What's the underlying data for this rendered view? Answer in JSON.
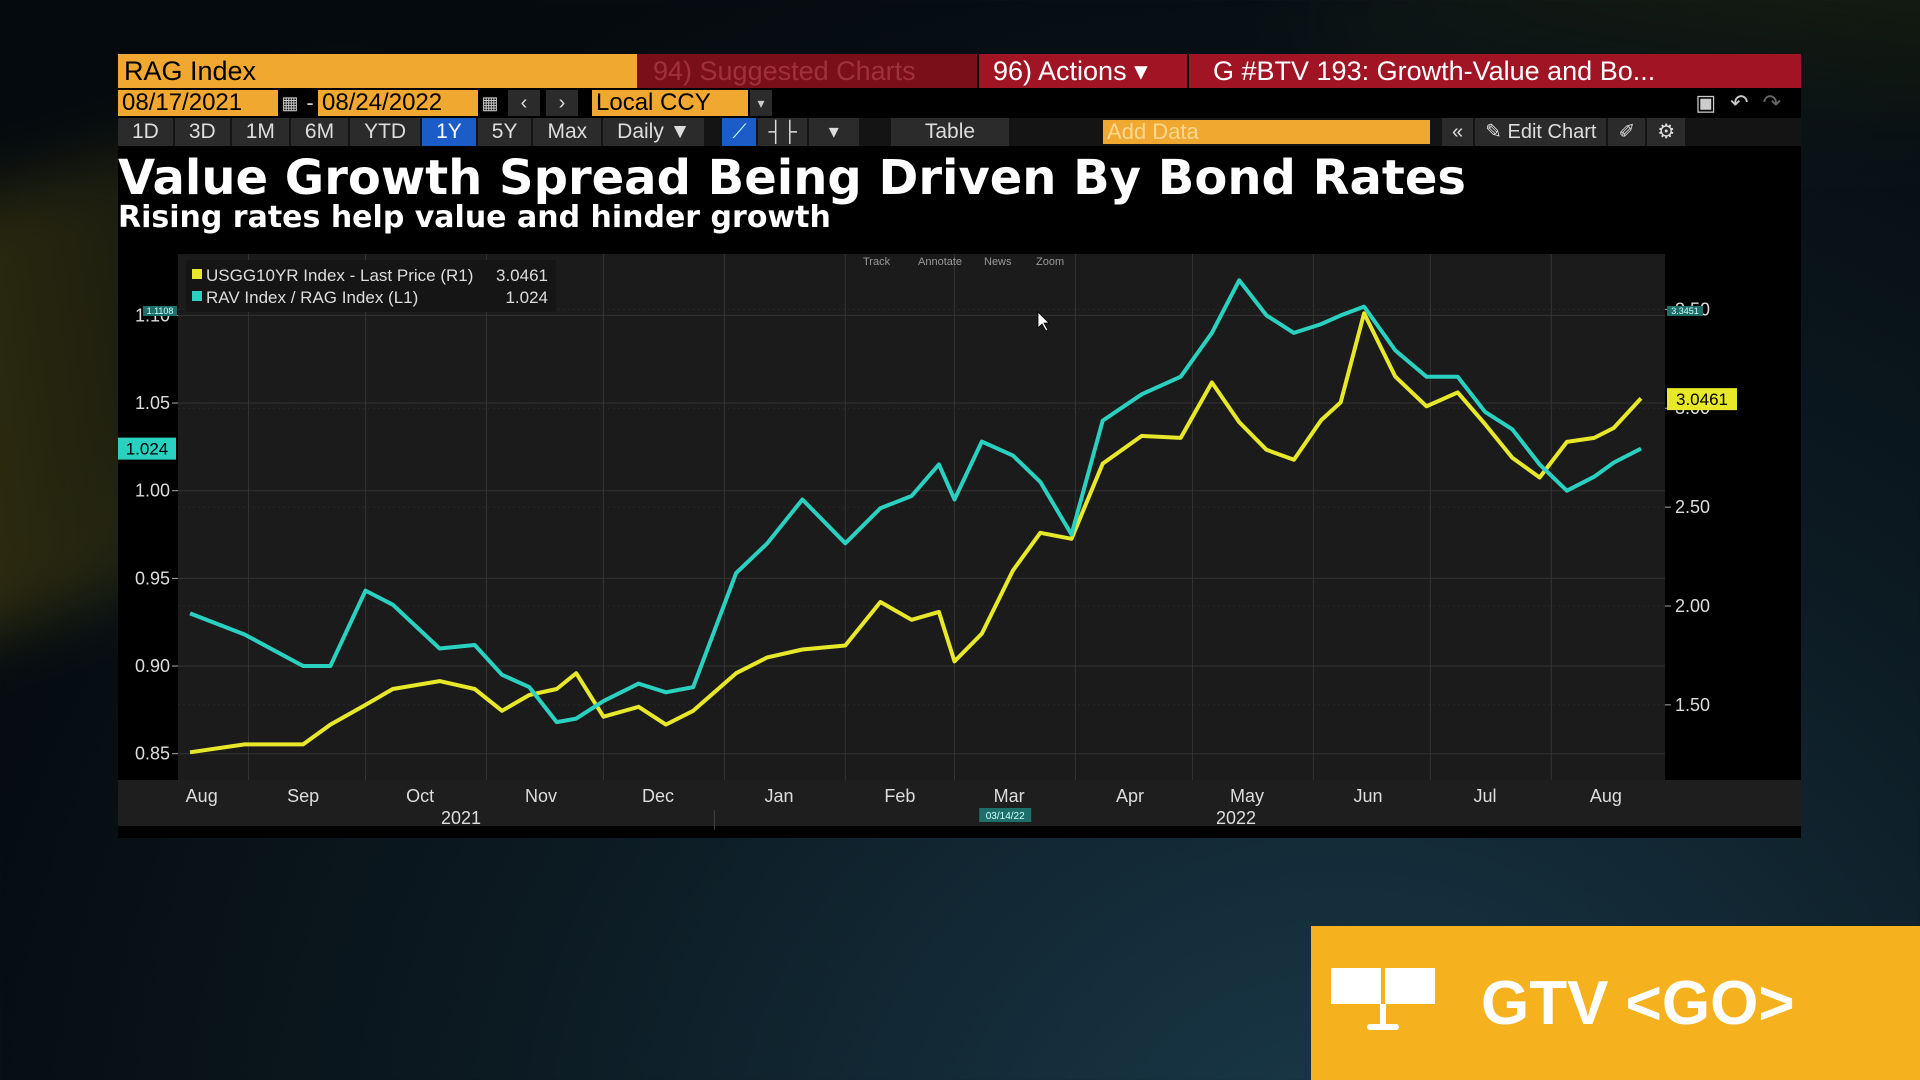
{
  "toolbar": {
    "security": "RAG Index",
    "suggested": "94) Suggested Charts",
    "actions": "96) Actions ▾",
    "chart_title": "G #BTV 193: Growth-Value and Bo...",
    "start_date": "08/17/2021",
    "end_date": "08/24/2022",
    "currency": "Local CCY",
    "timeframes": [
      "1D",
      "3D",
      "1M",
      "6M",
      "YTD",
      "1Y",
      "5Y",
      "Max"
    ],
    "active_timeframe": "1Y",
    "frequency": "Daily ▼",
    "table_label": "Table",
    "add_data_placeholder": "Add Data",
    "edit_chart_label": "Edit Chart"
  },
  "banner": {
    "text": "GTV <GO>"
  },
  "colors": {
    "series1": "#e8e82a",
    "series2": "#2ad0c0",
    "accent": "#f0a830",
    "red": "#a01424",
    "active": "#1b5cc8"
  },
  "chart_data": {
    "type": "line",
    "title": "Value Growth Spread Being Driven By Bond Rates",
    "subtitle": "Rising rates help value and hinder growth",
    "chart_tools": [
      "Track",
      "Annotate",
      "News",
      "Zoom"
    ],
    "x_month_labels": [
      "Aug",
      "Sep",
      "Oct",
      "Nov",
      "Dec",
      "Jan",
      "Feb",
      "Mar",
      "Apr",
      "May",
      "Jun",
      "Jul",
      "Aug"
    ],
    "x_year_labels": [
      "2021",
      "2022"
    ],
    "cursor_date": "03/14/22",
    "left_axis": {
      "ticks": [
        "1.10",
        "1.05",
        "1.00",
        "0.95",
        "0.90",
        "0.85"
      ],
      "range": [
        0.835,
        1.135
      ],
      "last_value_label": "1.024",
      "top_label": "1.1108"
    },
    "right_axis": {
      "ticks": [
        "3.50",
        "3.00",
        "2.50",
        "2.00",
        "1.50"
      ],
      "range": [
        1.12,
        3.78
      ],
      "last_value_label": "3.0461",
      "top_label": "3.3451"
    },
    "grid": true,
    "legend_position": "top-left",
    "legend": [
      {
        "name": "USGG10YR Index - Last Price (R1)",
        "value": "3.0461"
      },
      {
        "name": "RAV Index / RAG Index (L1)",
        "value": "1.024"
      }
    ],
    "series": [
      {
        "name": "USGG10YR Index - Last Price (R1)",
        "axis": "right",
        "points": [
          [
            "2021-08-17",
            1.26
          ],
          [
            "2021-08-31",
            1.3
          ],
          [
            "2021-09-15",
            1.3
          ],
          [
            "2021-09-22",
            1.4
          ],
          [
            "2021-10-01",
            1.5
          ],
          [
            "2021-10-08",
            1.58
          ],
          [
            "2021-10-20",
            1.62
          ],
          [
            "2021-10-29",
            1.58
          ],
          [
            "2021-11-05",
            1.47
          ],
          [
            "2021-11-12",
            1.55
          ],
          [
            "2021-11-19",
            1.58
          ],
          [
            "2021-11-24",
            1.66
          ],
          [
            "2021-12-01",
            1.44
          ],
          [
            "2021-12-10",
            1.49
          ],
          [
            "2021-12-17",
            1.4
          ],
          [
            "2021-12-24",
            1.47
          ],
          [
            "2022-01-04",
            1.66
          ],
          [
            "2022-01-12",
            1.74
          ],
          [
            "2022-01-21",
            1.78
          ],
          [
            "2022-02-01",
            1.8
          ],
          [
            "2022-02-10",
            2.02
          ],
          [
            "2022-02-18",
            1.93
          ],
          [
            "2022-02-25",
            1.97
          ],
          [
            "2022-03-01",
            1.72
          ],
          [
            "2022-03-08",
            1.86
          ],
          [
            "2022-03-16",
            2.18
          ],
          [
            "2022-03-23",
            2.37
          ],
          [
            "2022-03-31",
            2.34
          ],
          [
            "2022-04-08",
            2.72
          ],
          [
            "2022-04-18",
            2.86
          ],
          [
            "2022-04-28",
            2.85
          ],
          [
            "2022-05-06",
            3.13
          ],
          [
            "2022-05-13",
            2.93
          ],
          [
            "2022-05-20",
            2.79
          ],
          [
            "2022-05-27",
            2.74
          ],
          [
            "2022-06-03",
            2.94
          ],
          [
            "2022-06-08",
            3.03
          ],
          [
            "2022-06-14",
            3.48
          ],
          [
            "2022-06-22",
            3.16
          ],
          [
            "2022-06-30",
            3.01
          ],
          [
            "2022-07-08",
            3.08
          ],
          [
            "2022-07-15",
            2.92
          ],
          [
            "2022-07-22",
            2.75
          ],
          [
            "2022-07-29",
            2.65
          ],
          [
            "2022-08-05",
            2.83
          ],
          [
            "2022-08-12",
            2.85
          ],
          [
            "2022-08-17",
            2.9
          ],
          [
            "2022-08-24",
            3.05
          ]
        ]
      },
      {
        "name": "RAV Index / RAG Index (L1)",
        "axis": "left",
        "points": [
          [
            "2021-08-17",
            0.93
          ],
          [
            "2021-08-31",
            0.918
          ],
          [
            "2021-09-15",
            0.9
          ],
          [
            "2021-09-22",
            0.9
          ],
          [
            "2021-10-01",
            0.943
          ],
          [
            "2021-10-08",
            0.935
          ],
          [
            "2021-10-20",
            0.91
          ],
          [
            "2021-10-29",
            0.912
          ],
          [
            "2021-11-05",
            0.895
          ],
          [
            "2021-11-12",
            0.888
          ],
          [
            "2021-11-19",
            0.868
          ],
          [
            "2021-11-24",
            0.87
          ],
          [
            "2021-12-01",
            0.88
          ],
          [
            "2021-12-10",
            0.89
          ],
          [
            "2021-12-17",
            0.885
          ],
          [
            "2021-12-24",
            0.888
          ],
          [
            "2022-01-04",
            0.953
          ],
          [
            "2022-01-12",
            0.97
          ],
          [
            "2022-01-21",
            0.995
          ],
          [
            "2022-02-01",
            0.97
          ],
          [
            "2022-02-10",
            0.99
          ],
          [
            "2022-02-18",
            0.997
          ],
          [
            "2022-02-25",
            1.015
          ],
          [
            "2022-03-01",
            0.995
          ],
          [
            "2022-03-08",
            1.028
          ],
          [
            "2022-03-16",
            1.02
          ],
          [
            "2022-03-23",
            1.005
          ],
          [
            "2022-03-31",
            0.975
          ],
          [
            "2022-04-08",
            1.04
          ],
          [
            "2022-04-18",
            1.055
          ],
          [
            "2022-04-28",
            1.065
          ],
          [
            "2022-05-06",
            1.09
          ],
          [
            "2022-05-13",
            1.12
          ],
          [
            "2022-05-20",
            1.1
          ],
          [
            "2022-05-27",
            1.09
          ],
          [
            "2022-06-03",
            1.095
          ],
          [
            "2022-06-08",
            1.1
          ],
          [
            "2022-06-14",
            1.105
          ],
          [
            "2022-06-22",
            1.08
          ],
          [
            "2022-06-30",
            1.065
          ],
          [
            "2022-07-08",
            1.065
          ],
          [
            "2022-07-15",
            1.045
          ],
          [
            "2022-07-22",
            1.035
          ],
          [
            "2022-07-29",
            1.015
          ],
          [
            "2022-08-05",
            1.0
          ],
          [
            "2022-08-12",
            1.008
          ],
          [
            "2022-08-17",
            1.016
          ],
          [
            "2022-08-24",
            1.024
          ]
        ]
      }
    ]
  }
}
